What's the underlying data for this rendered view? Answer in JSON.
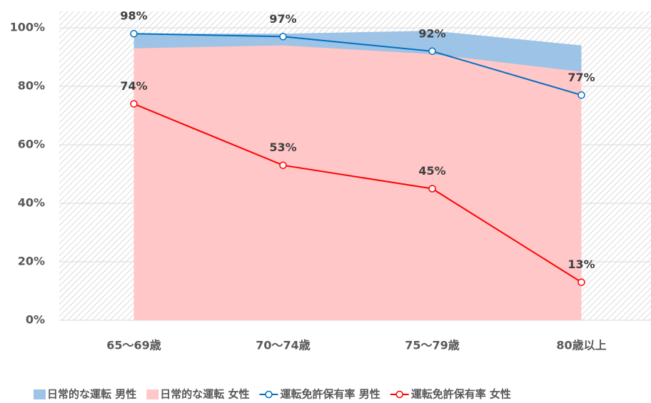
{
  "chart_data": {
    "type": "line",
    "categories": [
      "65〜69歳",
      "70〜74歳",
      "75〜79歳",
      "80歳以上"
    ],
    "series": [
      {
        "name": "日常的な運転 男性",
        "type": "area",
        "color": "#9dc3e6",
        "values": [
          98,
          98,
          99,
          94
        ]
      },
      {
        "name": "日常的な運転 女性",
        "type": "area",
        "color": "#ffc7c7",
        "values": [
          93,
          94,
          91,
          85
        ]
      },
      {
        "name": "運転免許保有率 男性",
        "type": "line",
        "color": "#0070c0",
        "values": [
          98,
          97,
          92,
          77
        ],
        "value_labels": [
          "98%",
          "97%",
          "92%",
          "77%"
        ]
      },
      {
        "name": "運転免許保有率 女性",
        "type": "line",
        "color": "#ff0000",
        "values": [
          74,
          53,
          45,
          13
        ],
        "value_labels": [
          "74%",
          "53%",
          "45%",
          "13%"
        ]
      }
    ],
    "ylim": [
      0,
      100
    ],
    "yticks": [
      {
        "value": 0,
        "label": "0%"
      },
      {
        "value": 20,
        "label": "20%"
      },
      {
        "value": 40,
        "label": "40%"
      },
      {
        "value": 60,
        "label": "60%"
      },
      {
        "value": 80,
        "label": "80%"
      },
      {
        "value": 100,
        "label": "100%"
      }
    ],
    "grid": true,
    "legend": "bottom"
  }
}
